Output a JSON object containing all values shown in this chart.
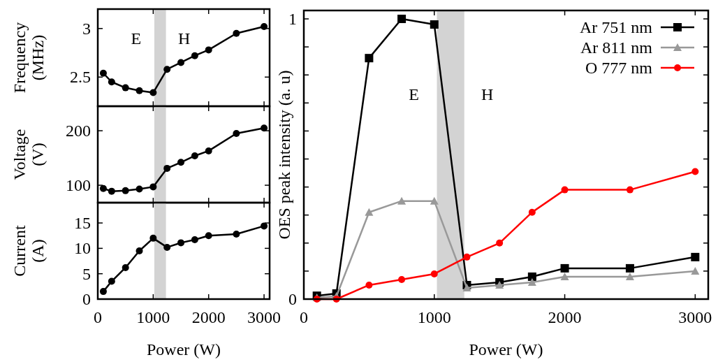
{
  "chart_data": [
    {
      "type": "line",
      "ylabel": "Frequency (MHz)",
      "x": [
        100,
        250,
        500,
        750,
        1000,
        1250,
        1500,
        1750,
        2000,
        2500,
        3000
      ],
      "xlim": [
        0,
        3100
      ],
      "xticks": [
        0,
        1000,
        2000,
        3000
      ],
      "ylim": [
        2.2,
        3.2
      ],
      "yticks": [
        2.5,
        3
      ],
      "tick_labels": "y",
      "marker": "circle",
      "grid": false,
      "legend": false,
      "series": [
        {
          "color": "#000000",
          "values": [
            2.54,
            2.45,
            2.39,
            2.36,
            2.34,
            2.58,
            2.65,
            2.72,
            2.78,
            2.95,
            3.02
          ]
        }
      ],
      "bands": [
        {
          "axis": "x",
          "from": 1020,
          "to": 1230,
          "color": "#d3d3d3"
        }
      ],
      "annotations": [
        "E",
        "H"
      ]
    },
    {
      "type": "line",
      "ylabel": "Voltage (V)",
      "x": [
        100,
        250,
        500,
        750,
        1000,
        1250,
        1500,
        1750,
        2000,
        2500,
        3000
      ],
      "xlim": [
        0,
        3100
      ],
      "xticks": [
        0,
        1000,
        2000,
        3000
      ],
      "ylim": [
        68,
        245
      ],
      "yticks": [
        100,
        200
      ],
      "tick_labels": "y",
      "marker": "circle",
      "grid": false,
      "legend": false,
      "series": [
        {
          "color": "#000000",
          "values": [
            94,
            89,
            90,
            93,
            97,
            131,
            142,
            154,
            163,
            195,
            205
          ]
        }
      ],
      "bands": [
        {
          "axis": "x",
          "from": 1020,
          "to": 1230,
          "color": "#d3d3d3"
        }
      ]
    },
    {
      "type": "line",
      "xlabel": "Power (W)",
      "ylabel": "Current (A)",
      "x": [
        100,
        250,
        500,
        750,
        1000,
        1250,
        1500,
        1750,
        2000,
        2500,
        3000
      ],
      "xlim": [
        0,
        3100
      ],
      "xticks": [
        0,
        1000,
        2000,
        3000
      ],
      "ylim": [
        0,
        19
      ],
      "yticks": [
        0,
        5,
        10,
        15
      ],
      "marker": "circle",
      "grid": false,
      "legend": false,
      "series": [
        {
          "color": "#000000",
          "values": [
            1.5,
            3.5,
            6.2,
            9.5,
            12.0,
            10.2,
            11.1,
            11.7,
            12.5,
            12.8,
            14.4
          ]
        }
      ],
      "bands": [
        {
          "axis": "x",
          "from": 1020,
          "to": 1230,
          "color": "#d3d3d3"
        }
      ]
    },
    {
      "type": "line",
      "xlabel": "Power (W)",
      "ylabel": "OES peak intensity (a. u)",
      "x": [
        100,
        250,
        500,
        750,
        1000,
        1250,
        1500,
        1750,
        2000,
        2500,
        3000
      ],
      "xlim": [
        0,
        3100
      ],
      "xticks": [
        0,
        1000,
        2000,
        3000
      ],
      "ylim": [
        0,
        1.03
      ],
      "yticks": [
        0,
        {
          "value": 0.1,
          "label": null
        },
        {
          "value": 0.2,
          "label": null
        },
        {
          "value": 0.3,
          "label": null
        },
        {
          "value": 0.4,
          "label": null
        },
        {
          "value": 0.5,
          "label": null
        },
        {
          "value": 0.6,
          "label": null
        },
        {
          "value": 0.7,
          "label": null
        },
        {
          "value": 0.8,
          "label": null
        },
        {
          "value": 0.9,
          "label": null
        },
        1
      ],
      "grid": false,
      "legend": "top right",
      "series": [
        {
          "name": "Ar 751 nm",
          "color": "#000000",
          "marker": "square",
          "values": [
            0.012,
            0.02,
            0.86,
            1.0,
            0.98,
            0.05,
            0.06,
            0.08,
            0.11,
            0.11,
            0.15
          ]
        },
        {
          "name": "Ar 811 nm",
          "color": "#999999",
          "marker": "triangle",
          "values": [
            0.005,
            0.01,
            0.31,
            0.35,
            0.35,
            0.04,
            0.05,
            0.06,
            0.08,
            0.08,
            0.1
          ]
        },
        {
          "name": "O 777 nm",
          "color": "#ff0000",
          "marker": "circle",
          "values": [
            0,
            0,
            0.05,
            0.07,
            0.09,
            0.15,
            0.2,
            0.31,
            0.39,
            0.39,
            0.455
          ]
        }
      ],
      "bands": [
        {
          "axis": "x",
          "from": 1020,
          "to": 1230,
          "color": "#d3d3d3"
        }
      ],
      "annotations": [
        "E",
        "H"
      ]
    }
  ]
}
